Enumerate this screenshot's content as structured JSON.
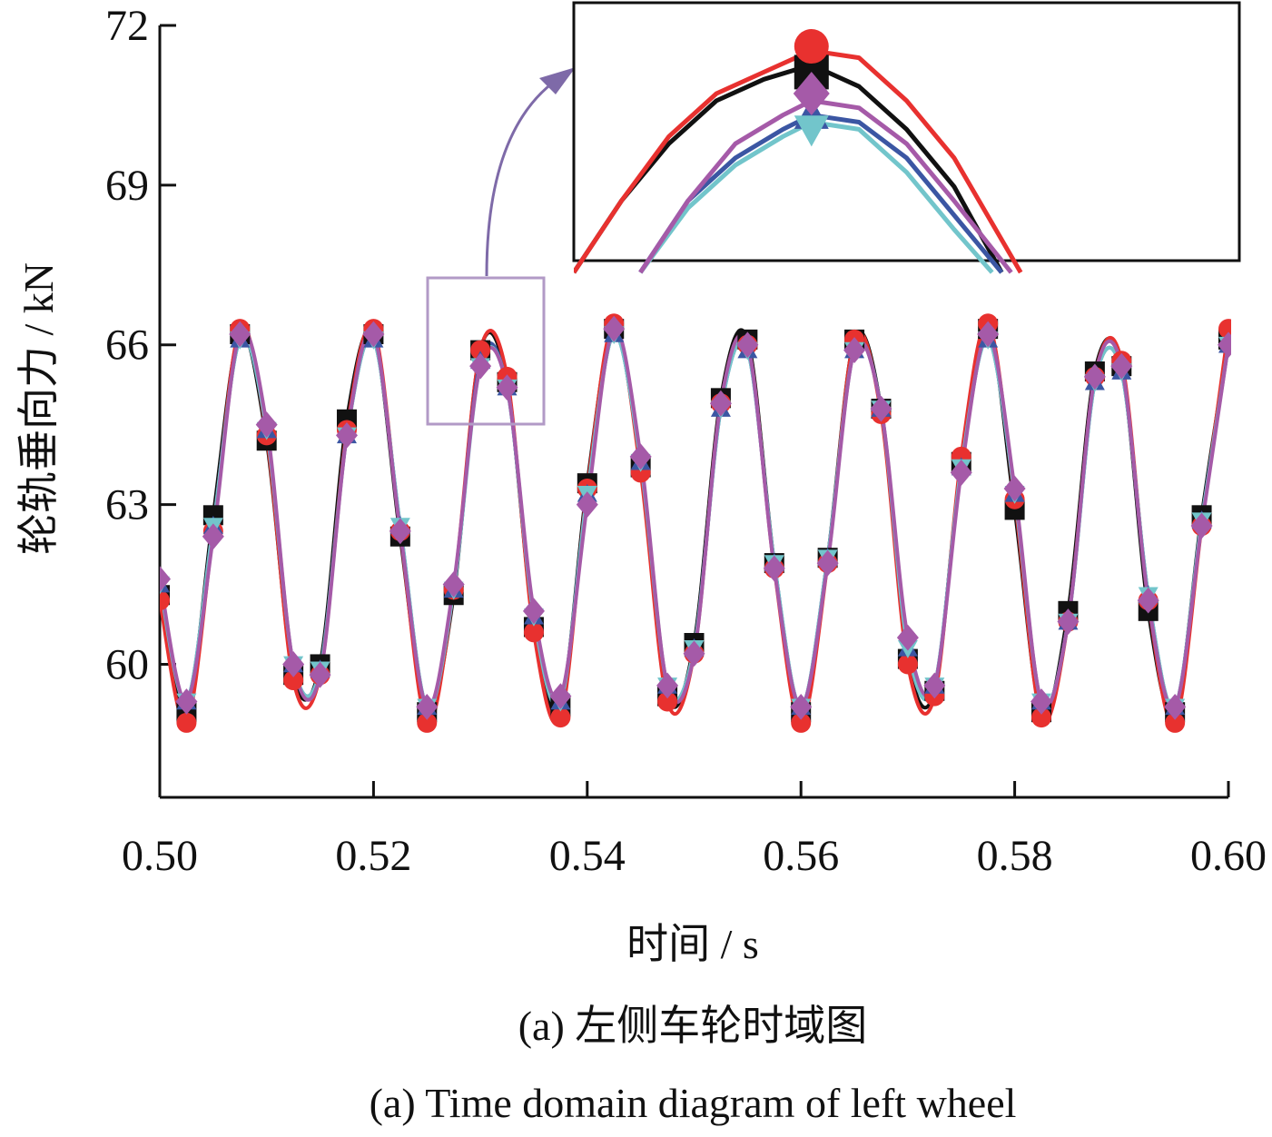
{
  "chart_data": {
    "type": "line",
    "title": "",
    "xlabel": "时间 / s",
    "ylabel": "轮轨垂向力 / kN",
    "xlim": [
      0.5,
      0.6
    ],
    "ylim": [
      57.5,
      72
    ],
    "xticks": [
      "0.50",
      "0.52",
      "0.54",
      "0.56",
      "0.58",
      "0.60"
    ],
    "yticks": [
      "60",
      "63",
      "66",
      "69",
      "72"
    ],
    "grid": false,
    "legend": "none",
    "series_colors": [
      "#111111",
      "#e8312f",
      "#3b56a3",
      "#72c5cb",
      "#a55aa8"
    ],
    "series": [
      {
        "color": "#111111",
        "marker": "square",
        "x": [
          0.5,
          0.5025,
          0.505,
          0.5075,
          0.51,
          0.5125,
          0.515,
          0.5175,
          0.52,
          0.5225,
          0.525,
          0.5275,
          0.53,
          0.5325,
          0.535,
          0.5375,
          0.54,
          0.5425,
          0.545,
          0.5475,
          0.55,
          0.5525,
          0.555,
          0.5575,
          0.56,
          0.5625,
          0.565,
          0.5675,
          0.57,
          0.5725,
          0.575,
          0.5775,
          0.58,
          0.5825,
          0.585,
          0.5875,
          0.59,
          0.5925,
          0.595,
          0.5975,
          0.6
        ],
        "y": [
          61.3,
          59.1,
          62.8,
          66.2,
          64.2,
          59.8,
          60.0,
          64.6,
          66.2,
          62.4,
          59.1,
          61.3,
          65.9,
          65.3,
          60.7,
          59.2,
          63.4,
          66.3,
          63.7,
          59.4,
          60.4,
          65.0,
          66.1,
          61.9,
          59.1,
          62.0,
          66.1,
          64.8,
          60.1,
          59.5,
          63.8,
          66.3,
          62.9,
          59.1,
          61.0,
          65.5,
          65.6,
          61.0,
          59.1,
          62.8,
          66.1
        ]
      },
      {
        "color": "#e8312f",
        "marker": "circle",
        "x": [
          0.5,
          0.5025,
          0.505,
          0.5075,
          0.51,
          0.5125,
          0.515,
          0.5175,
          0.52,
          0.5225,
          0.525,
          0.5275,
          0.53,
          0.5325,
          0.535,
          0.5375,
          0.54,
          0.5425,
          0.545,
          0.5475,
          0.55,
          0.5525,
          0.555,
          0.5575,
          0.56,
          0.5625,
          0.565,
          0.5675,
          0.57,
          0.5725,
          0.575,
          0.5775,
          0.58,
          0.5825,
          0.585,
          0.5875,
          0.59,
          0.5925,
          0.595,
          0.5975,
          0.6
        ],
        "y": [
          61.2,
          58.9,
          62.5,
          66.3,
          64.3,
          59.7,
          59.8,
          64.4,
          66.3,
          62.5,
          58.9,
          61.4,
          65.9,
          65.4,
          60.6,
          59.0,
          63.3,
          66.4,
          63.6,
          59.3,
          60.2,
          64.9,
          66.0,
          61.8,
          58.9,
          61.9,
          66.1,
          64.7,
          60.0,
          59.4,
          63.9,
          66.4,
          63.1,
          59.0,
          60.8,
          65.4,
          65.7,
          61.2,
          58.9,
          62.6,
          66.3
        ]
      },
      {
        "color": "#3b56a3",
        "marker": "triangle-up",
        "x": [
          0.5,
          0.5025,
          0.505,
          0.5075,
          0.51,
          0.5125,
          0.515,
          0.5175,
          0.52,
          0.5225,
          0.525,
          0.5275,
          0.53,
          0.5325,
          0.535,
          0.5375,
          0.54,
          0.5425,
          0.545,
          0.5475,
          0.55,
          0.5525,
          0.555,
          0.5575,
          0.56,
          0.5625,
          0.565,
          0.5675,
          0.57,
          0.5725,
          0.575,
          0.5775,
          0.58,
          0.5825,
          0.585,
          0.5875,
          0.59,
          0.5925,
          0.595,
          0.5975,
          0.6
        ],
        "y": [
          61.5,
          59.3,
          62.6,
          66.1,
          64.4,
          60.0,
          59.9,
          64.3,
          66.1,
          62.6,
          59.2,
          61.4,
          65.7,
          65.2,
          60.9,
          59.3,
          63.2,
          66.2,
          63.8,
          59.6,
          60.3,
          64.8,
          65.9,
          61.9,
          59.2,
          62.0,
          65.9,
          64.8,
          60.3,
          59.6,
          63.7,
          66.1,
          63.2,
          59.3,
          60.8,
          65.3,
          65.5,
          61.3,
          59.2,
          62.7,
          66.0
        ]
      },
      {
        "color": "#72c5cb",
        "marker": "triangle-down",
        "x": [
          0.5,
          0.5025,
          0.505,
          0.5075,
          0.51,
          0.5125,
          0.515,
          0.5175,
          0.52,
          0.5225,
          0.525,
          0.5275,
          0.53,
          0.5325,
          0.535,
          0.5375,
          0.54,
          0.5425,
          0.545,
          0.5475,
          0.55,
          0.5525,
          0.555,
          0.5575,
          0.56,
          0.5625,
          0.565,
          0.5675,
          0.57,
          0.5725,
          0.575,
          0.5775,
          0.58,
          0.5825,
          0.585,
          0.5875,
          0.59,
          0.5925,
          0.595,
          0.5975,
          0.6
        ],
        "y": [
          61.5,
          59.3,
          62.6,
          66.1,
          64.4,
          60.0,
          59.9,
          64.3,
          66.1,
          62.6,
          59.2,
          61.4,
          65.6,
          65.2,
          60.9,
          59.3,
          63.2,
          66.2,
          63.8,
          59.6,
          60.3,
          64.8,
          65.9,
          61.9,
          59.2,
          62.0,
          65.9,
          64.8,
          60.3,
          59.6,
          63.7,
          66.1,
          63.2,
          59.3,
          60.8,
          65.3,
          65.5,
          61.3,
          59.2,
          62.7,
          66.0
        ]
      },
      {
        "color": "#a55aa8",
        "marker": "diamond",
        "x": [
          0.5,
          0.5025,
          0.505,
          0.5075,
          0.51,
          0.5125,
          0.515,
          0.5175,
          0.52,
          0.5225,
          0.525,
          0.5275,
          0.53,
          0.5325,
          0.535,
          0.5375,
          0.54,
          0.5425,
          0.545,
          0.5475,
          0.55,
          0.5525,
          0.555,
          0.5575,
          0.56,
          0.5625,
          0.565,
          0.5675,
          0.57,
          0.5725,
          0.575,
          0.5775,
          0.58,
          0.5825,
          0.585,
          0.5875,
          0.59,
          0.5925,
          0.595,
          0.5975,
          0.6
        ],
        "y": [
          61.6,
          59.3,
          62.4,
          66.2,
          64.5,
          60.0,
          59.8,
          64.3,
          66.2,
          62.5,
          59.2,
          61.5,
          65.6,
          65.2,
          61.0,
          59.4,
          63.0,
          66.3,
          63.9,
          59.6,
          60.2,
          64.9,
          66.0,
          61.8,
          59.2,
          61.9,
          65.9,
          64.8,
          60.5,
          59.6,
          63.6,
          66.2,
          63.3,
          59.3,
          60.8,
          65.4,
          65.6,
          61.2,
          59.2,
          62.6,
          66.0
        ]
      }
    ],
    "inset": {
      "source_xlim": [
        0.5285,
        0.5355
      ],
      "source_ylim": [
        64.7,
        67.3
      ],
      "series": [
        {
          "color": "#111111",
          "marker": "square",
          "x": [
            0.5285,
            0.529,
            0.5295,
            0.53,
            0.5305,
            0.531,
            0.5315,
            0.532,
            0.5325,
            0.533
          ],
          "y": [
            64.8,
            65.3,
            65.7,
            66.0,
            66.15,
            66.25,
            66.1,
            65.8,
            65.4,
            64.8
          ]
        },
        {
          "color": "#e8312f",
          "marker": "circle",
          "x": [
            0.5285,
            0.529,
            0.5295,
            0.53,
            0.5305,
            0.531,
            0.5315,
            0.532,
            0.5325,
            0.5332
          ],
          "y": [
            64.8,
            65.3,
            65.75,
            66.05,
            66.2,
            66.35,
            66.3,
            66.0,
            65.6,
            64.8
          ]
        },
        {
          "color": "#3b56a3",
          "marker": "triangle-up",
          "x": [
            0.5292,
            0.5297,
            0.5302,
            0.5307,
            0.531,
            0.5315,
            0.532,
            0.5325,
            0.533
          ],
          "y": [
            64.8,
            65.3,
            65.6,
            65.8,
            65.9,
            65.85,
            65.6,
            65.2,
            64.8
          ]
        },
        {
          "color": "#72c5cb",
          "marker": "triangle-down",
          "x": [
            0.5292,
            0.5297,
            0.5302,
            0.5307,
            0.531,
            0.5315,
            0.532,
            0.5325,
            0.5329
          ],
          "y": [
            64.8,
            65.25,
            65.55,
            65.75,
            65.85,
            65.8,
            65.5,
            65.1,
            64.8
          ]
        },
        {
          "color": "#a55aa8",
          "marker": "diamond",
          "x": [
            0.5292,
            0.5297,
            0.5302,
            0.5307,
            0.531,
            0.5315,
            0.532,
            0.5325,
            0.5331
          ],
          "y": [
            64.8,
            65.3,
            65.7,
            65.9,
            66.0,
            65.95,
            65.7,
            65.3,
            64.8
          ]
        }
      ],
      "peak_x": 0.531,
      "peak_markers": [
        {
          "marker": "square",
          "y": 66.2
        },
        {
          "marker": "circle",
          "y": 66.38
        },
        {
          "marker": "triangle-up",
          "y": 65.9
        },
        {
          "marker": "triangle-down",
          "y": 65.8
        },
        {
          "marker": "diamond",
          "y": 66.05
        }
      ]
    }
  },
  "caption": {
    "line1": "(a) 左侧车轮时域图",
    "line2": "(a) Time domain diagram of left wheel"
  }
}
